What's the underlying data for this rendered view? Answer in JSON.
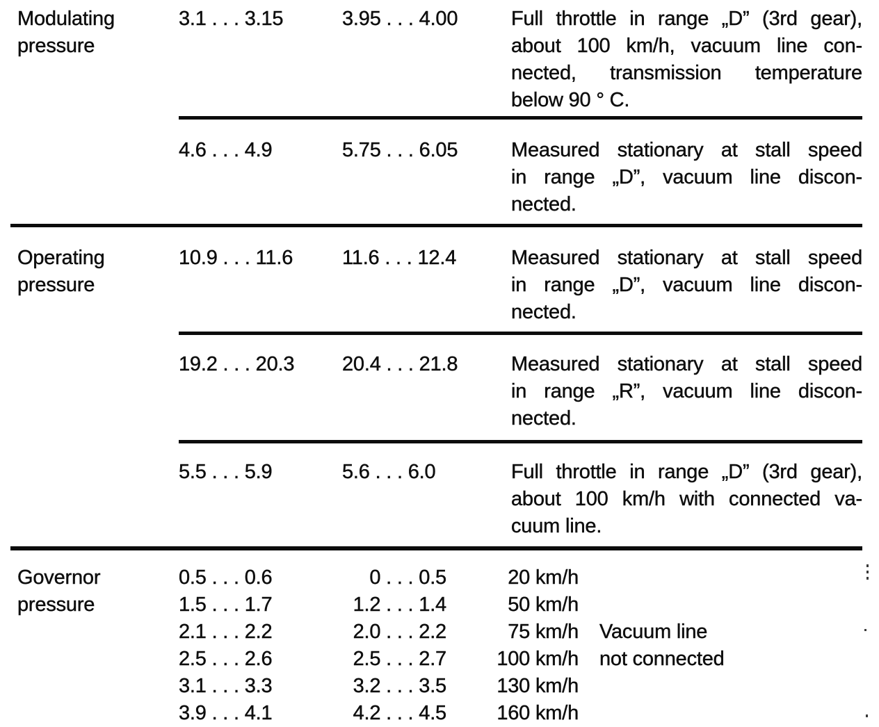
{
  "page": {
    "background": "#ffffff",
    "ink_color": "#0e0e0e",
    "rule_color": "#0c0c0c"
  },
  "table": {
    "sections": [
      {
        "label_lines": [
          "Modulating",
          "pressure"
        ],
        "rows": [
          {
            "value_a": "3.1 . . . 3.15",
            "value_b": "3.95 . . . 4.00",
            "desc_lines": [
              "Full throttle in range „D” (3rd gear),",
              "about 100 km/h, vacuum line con-",
              "nected, transmission temperature",
              "below 90 ° C."
            ]
          },
          {
            "value_a": "4.6 . . . 4.9",
            "value_b": "5.75 . . . 6.05",
            "desc_lines": [
              "Measured stationary at stall speed",
              "in range „D”, vacuum line discon-",
              "nected."
            ]
          }
        ]
      },
      {
        "label_lines": [
          "Operating",
          "pressure"
        ],
        "rows": [
          {
            "value_a": "10.9 . . . 11.6",
            "value_b": "11.6 . . . 12.4",
            "desc_lines": [
              "Measured stationary at stall speed",
              "in range „D”, vacuum line discon-",
              "nected."
            ]
          },
          {
            "value_a": "19.2 . . . 20.3",
            "value_b": "20.4 . . . 21.8",
            "desc_lines": [
              "Measured stationary at stall speed",
              "in range „R”, vacuum line discon-",
              "nected."
            ]
          },
          {
            "value_a": "5.5 . . . 5.9",
            "value_b": "5.6 . . . 6.0",
            "desc_lines": [
              "Full throttle in range „D” (3rd gear),",
              "about 100 km/h with connected va-",
              "cuum line."
            ]
          }
        ]
      },
      {
        "label_lines": [
          "Governor",
          "pressure"
        ],
        "rows": [
          {
            "value_a": "0.5 . . . 0.6",
            "value_b": "0 . . . 0.5",
            "speed": "20 km/h",
            "note": ""
          },
          {
            "value_a": "1.5 . . . 1.7",
            "value_b": "1.2 . . . 1.4",
            "speed": "50 km/h",
            "note": ""
          },
          {
            "value_a": "2.1 . . . 2.2",
            "value_b": "2.0 . . . 2.2",
            "speed": "75 km/h",
            "note": "Vacuum line"
          },
          {
            "value_a": "2.5 . . . 2.6",
            "value_b": "2.5 . . . 2.7",
            "speed": "100 km/h",
            "note": "not connected"
          },
          {
            "value_a": "3.1 . . . 3.3",
            "value_b": "3.2 . . . 3.5",
            "speed": "130 km/h",
            "note": ""
          },
          {
            "value_a": "3.9 . . . 4.1",
            "value_b": "4.2 . . . 4.5",
            "speed": "160 km/h",
            "note": ""
          }
        ]
      }
    ]
  }
}
